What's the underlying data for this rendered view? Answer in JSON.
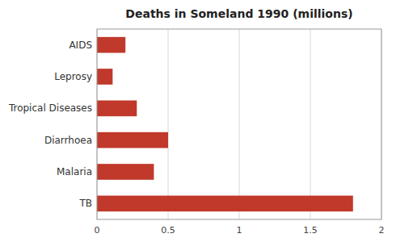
{
  "chart_data": {
    "type": "bar",
    "orientation": "horizontal",
    "title": "Deaths in Someland 1990 (millions)",
    "categories": [
      "TB",
      "Malaria",
      "Diarrhoea",
      "Tropical Diseases",
      "Leprosy",
      "AIDS"
    ],
    "values": [
      1.8,
      0.4,
      0.5,
      0.28,
      0.11,
      0.2
    ],
    "color": "#c0392b",
    "xlim": [
      0,
      2
    ],
    "xticks": [
      0,
      0.5,
      1,
      1.5,
      2
    ],
    "grid": true
  }
}
